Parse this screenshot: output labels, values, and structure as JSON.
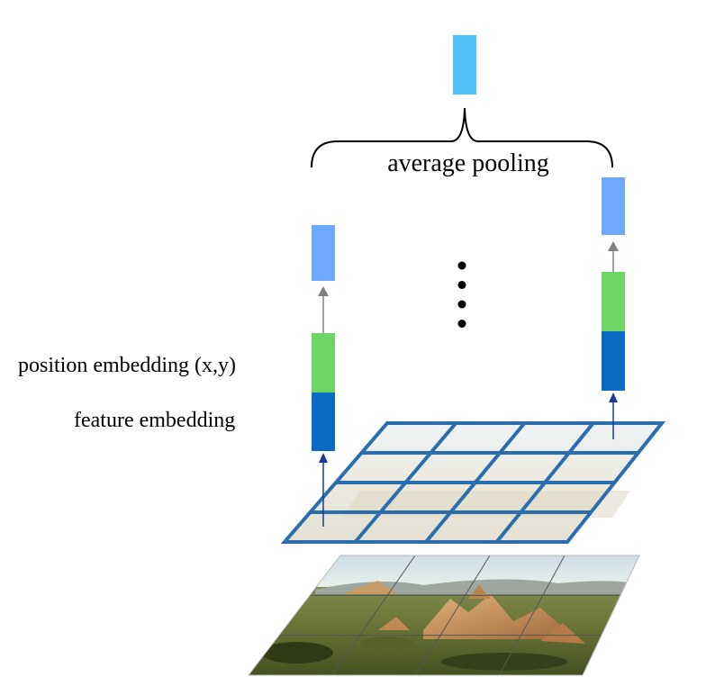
{
  "labels": {
    "pooling": "average pooling",
    "position": "position embedding (x,y)",
    "feature": "feature embedding"
  },
  "colors": {
    "pooled_output": "#4FC3F7",
    "output_token": "#6FA8FF",
    "position_embedding": "#6DD466",
    "feature_embedding": "#0B6BC2",
    "grid_line": "#2A6EB0",
    "arrow_up": "#1A3D8F",
    "arrow_gray": "#808080"
  },
  "feature_grid": {
    "rows": 4,
    "cols": 4
  },
  "image_grid": {
    "rows": 3,
    "cols": 4
  },
  "ellipsis_dots": 4
}
